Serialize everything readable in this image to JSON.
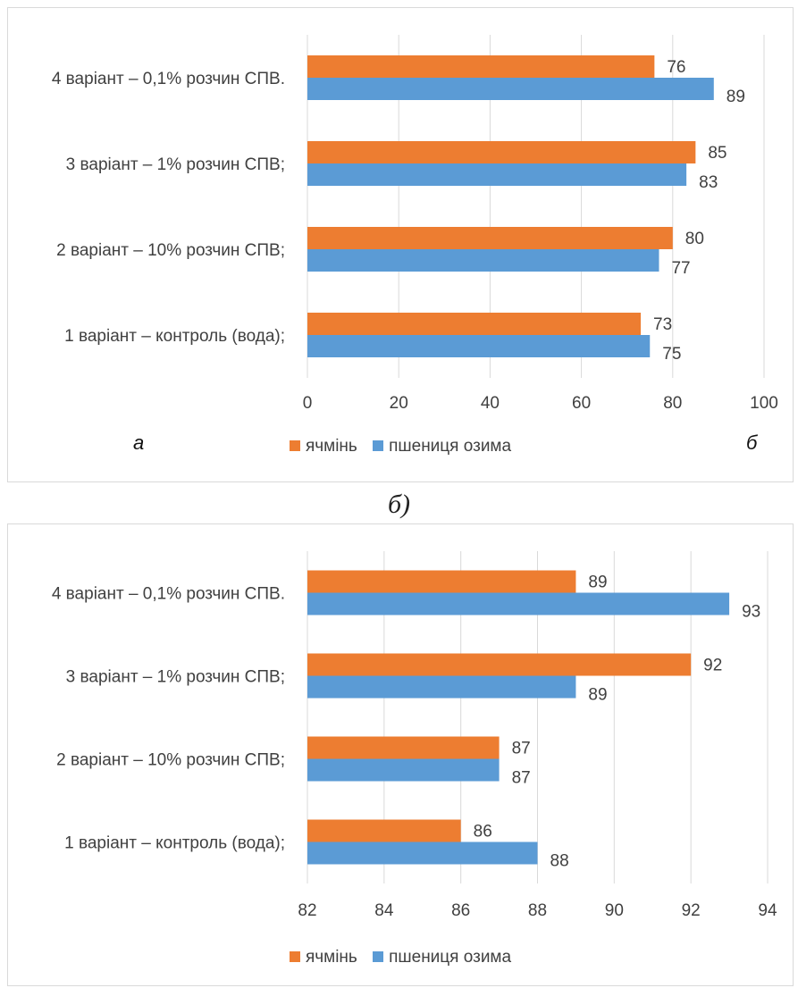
{
  "colors": {
    "barley": "#ED7D31",
    "wheat": "#5B9BD5",
    "grid": "#d9d9d9",
    "text": "#404040"
  },
  "caption": "б)",
  "chart_data": [
    {
      "type": "bar",
      "orientation": "horizontal",
      "categories": [
        "1 варіант – контроль (вода);",
        "2 варіант – 10% розчин СПВ;",
        "3 варіант – 1% розчин СПВ;",
        "4 варіант – 0,1% розчин СПВ."
      ],
      "series": [
        {
          "name": "ячмінь",
          "values": [
            73,
            80,
            85,
            76
          ]
        },
        {
          "name": "пшениця озима",
          "values": [
            75,
            77,
            83,
            89
          ]
        }
      ],
      "xlim": [
        0,
        100
      ],
      "xticks": [
        0,
        20,
        40,
        60,
        80,
        100
      ],
      "grid": true,
      "legend": "bottom",
      "annotations": [
        "а",
        "б"
      ]
    },
    {
      "type": "bar",
      "orientation": "horizontal",
      "categories": [
        "1 варіант – контроль (вода);",
        "2 варіант – 10% розчин СПВ;",
        "3 варіант – 1% розчин СПВ;",
        "4 варіант – 0,1% розчин СПВ."
      ],
      "series": [
        {
          "name": "ячмінь",
          "values": [
            86,
            87,
            92,
            89
          ]
        },
        {
          "name": "пшениця озима",
          "values": [
            88,
            87,
            89,
            93
          ]
        }
      ],
      "xlim": [
        82,
        94
      ],
      "xticks": [
        82,
        84,
        86,
        88,
        90,
        92,
        94
      ],
      "grid": true,
      "legend": "bottom"
    }
  ]
}
